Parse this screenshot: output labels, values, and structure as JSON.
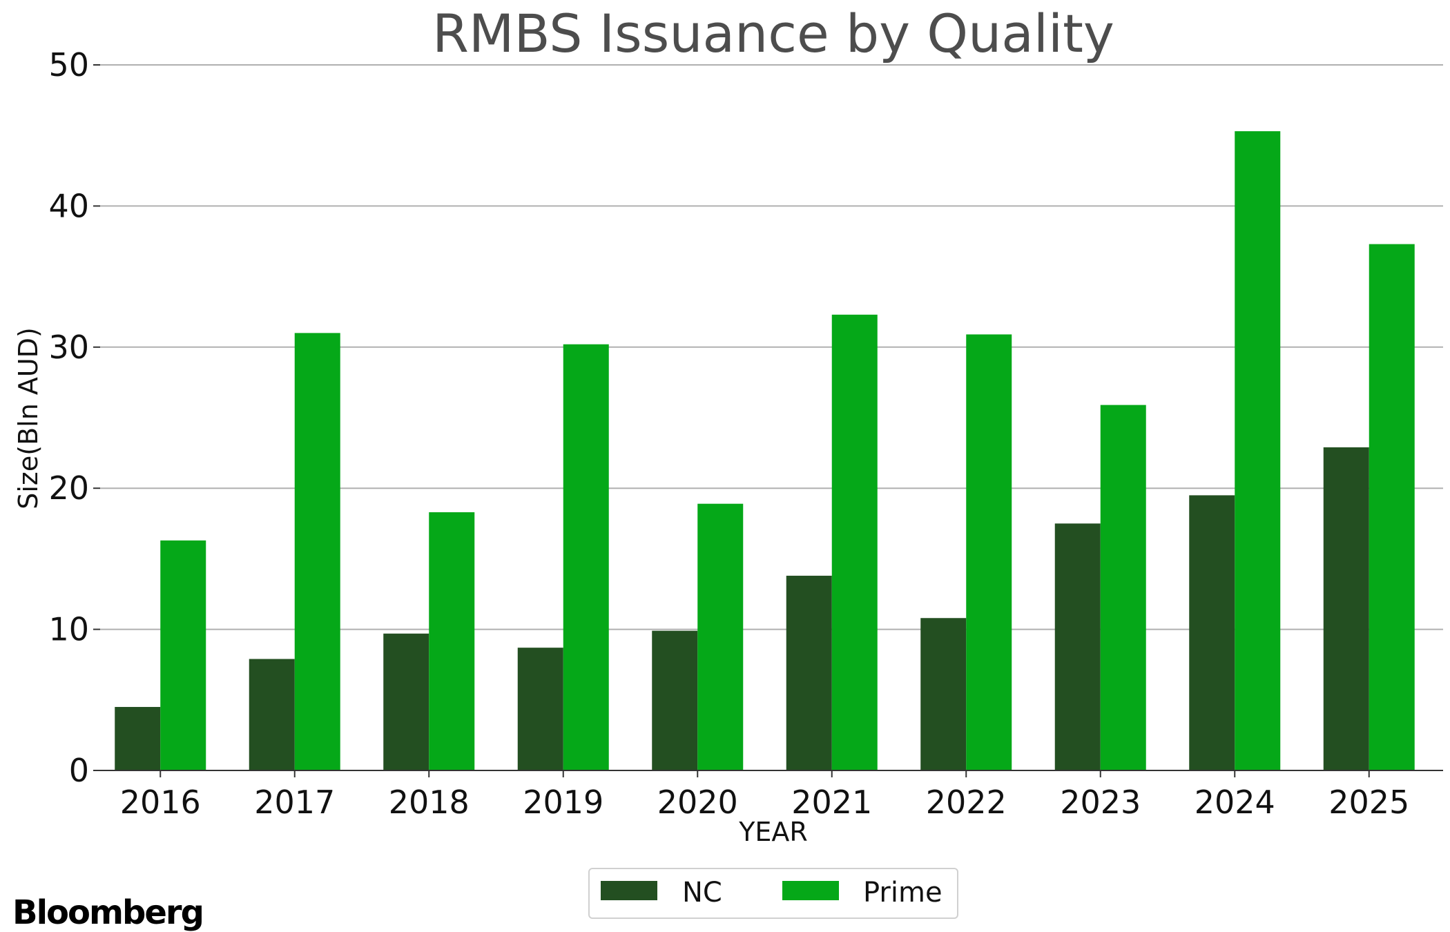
{
  "chart_data": {
    "type": "bar",
    "title": "RMBS Issuance by Quality",
    "xlabel": "YEAR",
    "ylabel": "Size(Bln AUD)",
    "categories": [
      "2016",
      "2017",
      "2018",
      "2019",
      "2020",
      "2021",
      "2022",
      "2023",
      "2024",
      "2025"
    ],
    "series": [
      {
        "name": "NC",
        "color": "#234f21",
        "values": [
          4.5,
          7.9,
          9.7,
          8.7,
          9.9,
          13.8,
          10.8,
          17.5,
          19.5,
          22.9
        ]
      },
      {
        "name": "Prime",
        "color": "#05a818",
        "values": [
          16.3,
          31.0,
          18.3,
          30.2,
          18.9,
          32.3,
          30.9,
          25.9,
          45.3,
          37.3
        ]
      }
    ],
    "ylim": [
      0,
      50
    ],
    "yticks": [
      0,
      10,
      20,
      30,
      40,
      50
    ],
    "grid": "horizontal",
    "legend_position": "bottom-center"
  },
  "branding": {
    "logo_text": "Bloomberg"
  }
}
